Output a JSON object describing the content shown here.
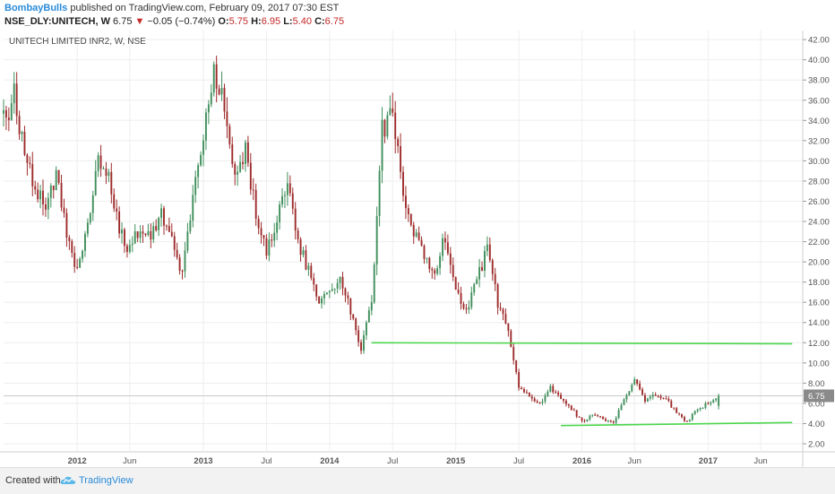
{
  "header": {
    "author": "BombayBulls",
    "published_text": "published on TradingView.com, February 09, 2017 07:30 EST",
    "symbol": "NSE_DLY:UNITECH, W",
    "last": "6.75",
    "change": "−0.05 (−0.74%)",
    "open_label": "O:",
    "open": "5.75",
    "high_label": "H:",
    "high": "6.95",
    "low_label": "L:",
    "low": "5.40",
    "close_label": "C:",
    "close": "6.75"
  },
  "chart_data": {
    "type": "candlestick",
    "title": "UNITECH LIMITED INR2, W, NSE",
    "ylim": [
      1.2,
      42.9
    ],
    "y_ticks": [
      2,
      4,
      6,
      8,
      10,
      12,
      14,
      16,
      18,
      20,
      22,
      24,
      26,
      28,
      30,
      32,
      34,
      36,
      38,
      40,
      42
    ],
    "y_tick_labels": [
      "2.00",
      "4.00",
      "6.00",
      "8.00",
      "10.00",
      "12.00",
      "14.00",
      "16.00",
      "18.00",
      "20.00",
      "22.00",
      "24.00",
      "26.00",
      "28.00",
      "30.00",
      "32.00",
      "34.00",
      "36.00",
      "38.00",
      "40.00",
      "42.00"
    ],
    "x_ticks": [
      {
        "label": "2012",
        "date": "2012-01"
      },
      {
        "label": "Jun",
        "date": "2012-06"
      },
      {
        "label": "2013",
        "date": "2013-01"
      },
      {
        "label": "Jul",
        "date": "2013-07"
      },
      {
        "label": "2014",
        "date": "2014-01"
      },
      {
        "label": "Jul",
        "date": "2014-07"
      },
      {
        "label": "2015",
        "date": "2015-01"
      },
      {
        "label": "Jul",
        "date": "2015-07"
      },
      {
        "label": "2016",
        "date": "2016-01"
      },
      {
        "label": "Jun",
        "date": "2016-06"
      },
      {
        "label": "2017",
        "date": "2017-01"
      },
      {
        "label": "Jun",
        "date": "2017-06"
      }
    ],
    "x_start": "2011-06",
    "x_end": "2017-10",
    "last_price": 6.75,
    "last_price_label": "6.75",
    "trend_lines": [
      {
        "from": [
          "2014-05",
          12.0
        ],
        "to": [
          "2017-09",
          11.9
        ],
        "color": "#4cd64c"
      },
      {
        "from": [
          "2015-11",
          3.8
        ],
        "to": [
          "2017-09",
          4.1
        ],
        "color": "#4cd64c"
      }
    ],
    "price_path": [
      [
        "2011-06",
        34
      ],
      [
        "2011-07",
        36.5
      ],
      [
        "2011-08",
        31
      ],
      [
        "2011-09",
        27
      ],
      [
        "2011-10",
        25.5
      ],
      [
        "2011-11",
        28.5
      ],
      [
        "2011-12",
        23
      ],
      [
        "2012-01",
        19
      ],
      [
        "2012-02",
        24
      ],
      [
        "2012-03",
        30.5
      ],
      [
        "2012-04",
        28
      ],
      [
        "2012-05",
        23
      ],
      [
        "2012-06",
        21
      ],
      [
        "2012-07",
        23.5
      ],
      [
        "2012-08",
        22.5
      ],
      [
        "2012-09",
        24.5
      ],
      [
        "2012-10",
        22
      ],
      [
        "2012-11",
        19
      ],
      [
        "2012-12",
        26
      ],
      [
        "2013-01",
        33
      ],
      [
        "2013-02",
        39.5
      ],
      [
        "2013-03",
        35
      ],
      [
        "2013-04",
        29
      ],
      [
        "2013-05",
        31
      ],
      [
        "2013-06",
        25
      ],
      [
        "2013-07",
        21
      ],
      [
        "2013-08",
        24
      ],
      [
        "2013-09",
        28
      ],
      [
        "2013-10",
        22
      ],
      [
        "2013-11",
        19
      ],
      [
        "2013-12",
        16
      ],
      [
        "2014-01",
        17
      ],
      [
        "2014-02",
        18.5
      ],
      [
        "2014-03",
        15
      ],
      [
        "2014-04",
        11.5
      ],
      [
        "2014-05",
        16
      ],
      [
        "2014-06",
        33
      ],
      [
        "2014-07",
        35
      ],
      [
        "2014-08",
        26
      ],
      [
        "2014-09",
        23
      ],
      [
        "2014-10",
        21
      ],
      [
        "2014-11",
        19
      ],
      [
        "2014-12",
        22.5
      ],
      [
        "2015-01",
        17
      ],
      [
        "2015-02",
        15
      ],
      [
        "2015-03",
        18.5
      ],
      [
        "2015-04",
        21
      ],
      [
        "2015-05",
        16
      ],
      [
        "2015-06",
        13
      ],
      [
        "2015-07",
        7.8
      ],
      [
        "2015-08",
        6.5
      ],
      [
        "2015-09",
        6
      ],
      [
        "2015-10",
        7.5
      ],
      [
        "2015-11",
        6.5
      ],
      [
        "2015-12",
        5.5
      ],
      [
        "2016-01",
        4.2
      ],
      [
        "2016-02",
        4.8
      ],
      [
        "2016-03",
        4.5
      ],
      [
        "2016-04",
        4.0
      ],
      [
        "2016-05",
        6.5
      ],
      [
        "2016-06",
        8.3
      ],
      [
        "2016-07",
        6.2
      ],
      [
        "2016-08",
        6.8
      ],
      [
        "2016-09",
        6.5
      ],
      [
        "2016-10",
        5.0
      ],
      [
        "2016-11",
        4.2
      ],
      [
        "2016-12",
        5.5
      ],
      [
        "2017-01",
        6.0
      ],
      [
        "2017-02",
        6.75
      ]
    ]
  },
  "footer": {
    "created_with": "Created with",
    "brand": "TradingView",
    "logo_icon": "tradingview-cloud-icon"
  }
}
